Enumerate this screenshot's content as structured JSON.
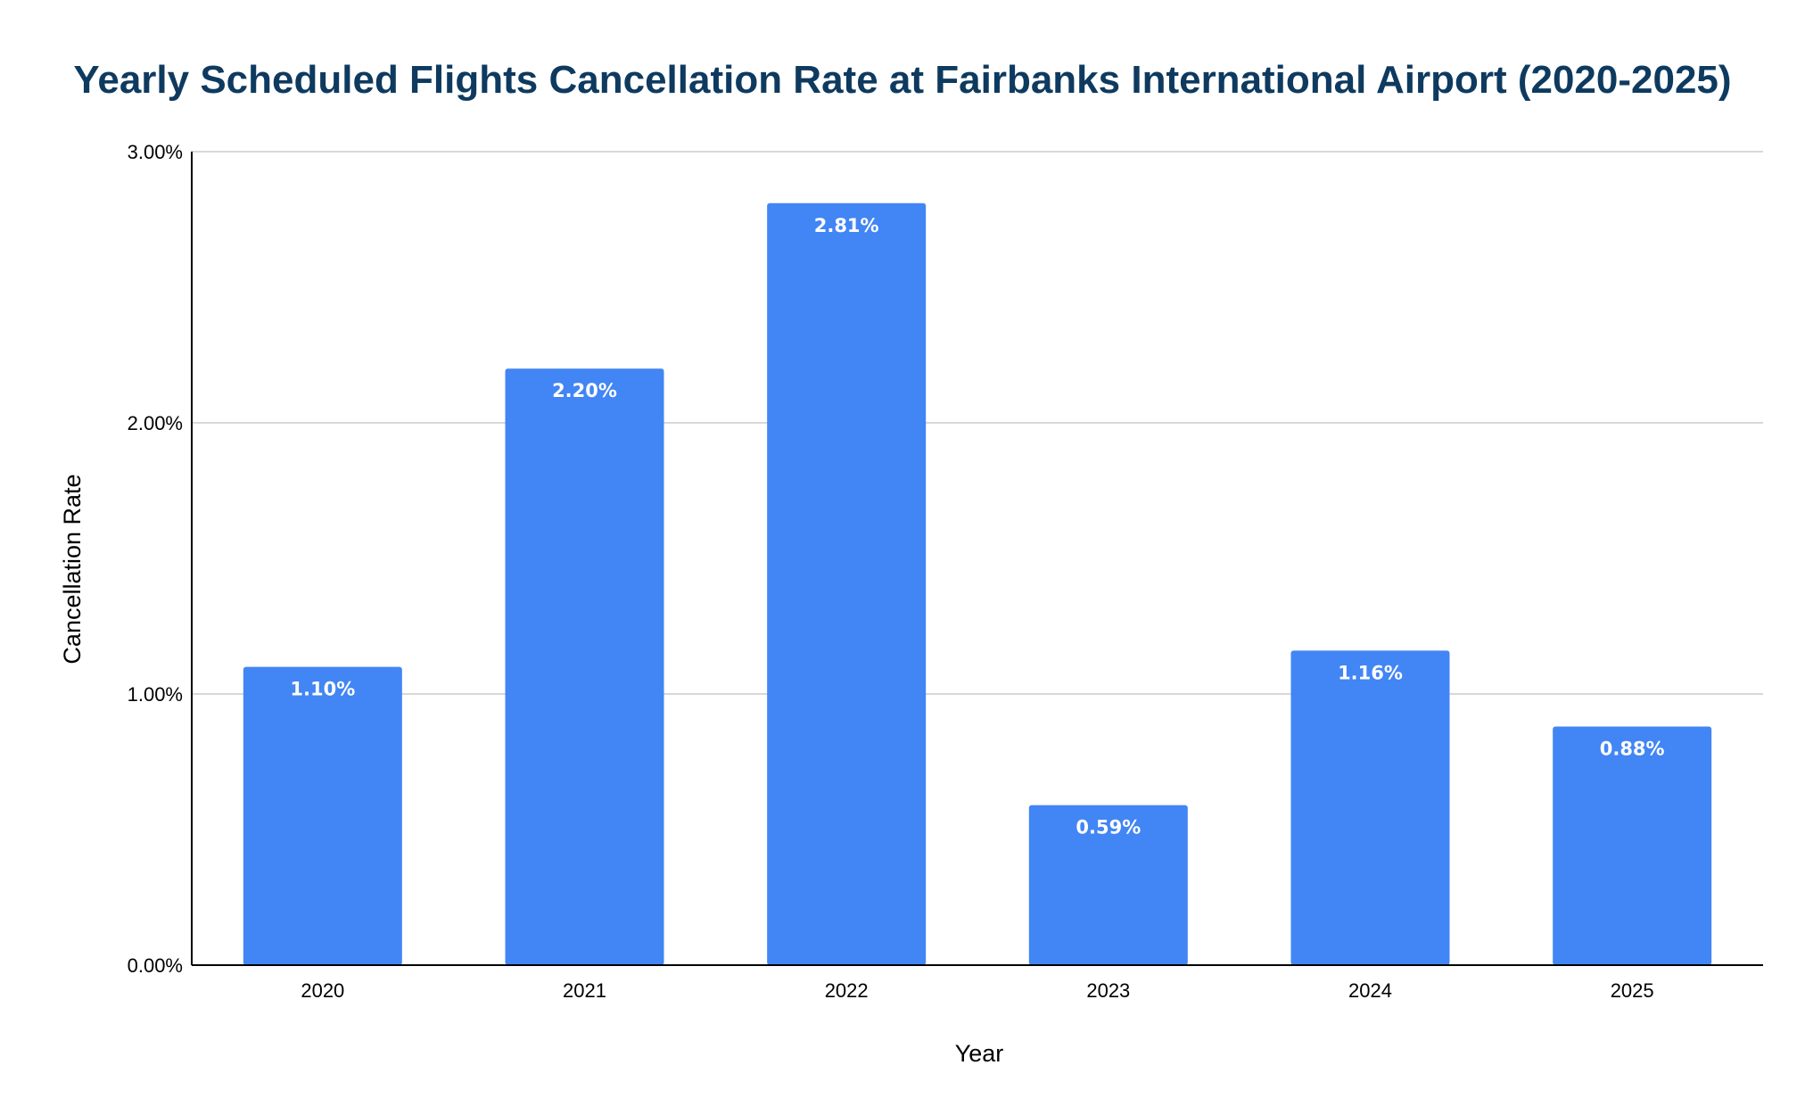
{
  "chart_data": {
    "type": "bar",
    "title": "Yearly Scheduled Flights Cancellation Rate at Fairbanks International Airport (2020-2025)",
    "xlabel": "Year",
    "ylabel": "Cancellation Rate",
    "categories": [
      "2020",
      "2021",
      "2022",
      "2023",
      "2024",
      "2025"
    ],
    "values": [
      1.1,
      2.2,
      2.81,
      0.59,
      1.16,
      0.88
    ],
    "value_labels": [
      "1.10%",
      "2.20%",
      "2.81%",
      "0.59%",
      "1.16%",
      "0.88%"
    ],
    "ylim": [
      0,
      3
    ],
    "yticks": [
      0,
      1,
      2,
      3
    ],
    "ytick_labels": [
      "0.00%",
      "1.00%",
      "2.00%",
      "3.00%"
    ],
    "grid": true,
    "legend": "none",
    "colors": {
      "bar": "#4285f4",
      "title": "#0e3a5f",
      "grid": "#cccccc",
      "axis": "#000000",
      "bar_label": "#ffffff"
    }
  }
}
